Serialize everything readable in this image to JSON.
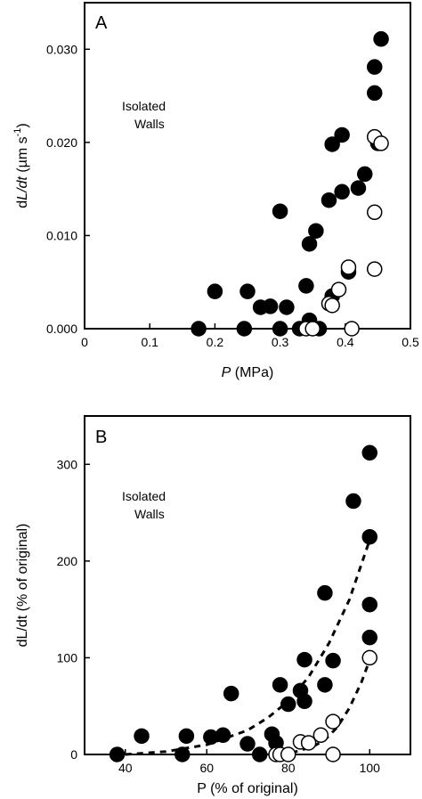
{
  "chart_data": [
    {
      "type": "scatter",
      "panel": "A",
      "annotation": [
        "Isolated",
        "Walls"
      ],
      "xlabel_italic": "P",
      "xlabel_rest": " (MPa)",
      "ylabel_pre": "d",
      "ylabel_italic": "L/dt",
      "ylabel_rest": " (µm s",
      "ylabel_sup": "-1",
      "ylabel_close": ")",
      "xlim": [
        0,
        0.5
      ],
      "ylim": [
        0,
        0.035
      ],
      "xticks": [
        0,
        0.1,
        0.2,
        0.3,
        0.4,
        0.5
      ],
      "xtick_labels": [
        "0",
        "0.1",
        "0.2",
        "0.3",
        "0.4",
        "0.5"
      ],
      "yticks": [
        0,
        0.01,
        0.02,
        0.03
      ],
      "ytick_labels": [
        "0.000",
        "0.010",
        "0.020",
        "0.030"
      ],
      "grid": false,
      "series": [
        {
          "style": "filled",
          "points": [
            [
              0.175,
              0.0
            ],
            [
              0.2,
              0.004
            ],
            [
              0.245,
              0.0
            ],
            [
              0.25,
              0.004
            ],
            [
              0.27,
              0.0023
            ],
            [
              0.285,
              0.0024
            ],
            [
              0.3,
              0.0
            ],
            [
              0.3,
              0.0126
            ],
            [
              0.31,
              0.0023
            ],
            [
              0.33,
              0.0
            ],
            [
              0.34,
              0.0046
            ],
            [
              0.345,
              0.0009
            ],
            [
              0.345,
              0.0091
            ],
            [
              0.355,
              0.0105
            ],
            [
              0.36,
              0.0
            ],
            [
              0.375,
              0.0138
            ],
            [
              0.38,
              0.0035
            ],
            [
              0.38,
              0.0198
            ],
            [
              0.395,
              0.0208
            ],
            [
              0.395,
              0.0147
            ],
            [
              0.405,
              0.0061
            ],
            [
              0.42,
              0.0151
            ],
            [
              0.43,
              0.0166
            ],
            [
              0.445,
              0.0253
            ],
            [
              0.445,
              0.0281
            ],
            [
              0.45,
              0.0199
            ],
            [
              0.455,
              0.0311
            ]
          ]
        },
        {
          "style": "open",
          "points": [
            [
              0.34,
              0.0
            ],
            [
              0.35,
              0.0
            ],
            [
              0.375,
              0.0027
            ],
            [
              0.38,
              0.0025
            ],
            [
              0.39,
              0.0042
            ],
            [
              0.405,
              0.0066
            ],
            [
              0.41,
              0.0
            ],
            [
              0.445,
              0.0064
            ],
            [
              0.445,
              0.0125
            ],
            [
              0.445,
              0.0206
            ],
            [
              0.455,
              0.0199
            ]
          ]
        }
      ]
    },
    {
      "type": "scatter",
      "panel": "B",
      "annotation": [
        "Isolated",
        "Walls"
      ],
      "xlabel": "P (% of original)",
      "ylabel": "dL/dt (% of original)",
      "xlim": [
        30,
        110
      ],
      "ylim": [
        0,
        350
      ],
      "xticks": [
        40,
        60,
        80,
        100
      ],
      "xtick_labels": [
        "40",
        "60",
        "80",
        "100"
      ],
      "yticks": [
        0,
        100,
        200,
        300
      ],
      "ytick_labels": [
        "0",
        "100",
        "200",
        "300"
      ],
      "grid": false,
      "series": [
        {
          "style": "filled",
          "points": [
            [
              38,
              0
            ],
            [
              44,
              19
            ],
            [
              54,
              0
            ],
            [
              55,
              19
            ],
            [
              61,
              18
            ],
            [
              64,
              20
            ],
            [
              66,
              63
            ],
            [
              70,
              11
            ],
            [
              73,
              0
            ],
            [
              76,
              21
            ],
            [
              77,
              12
            ],
            [
              78,
              72
            ],
            [
              80,
              52
            ],
            [
              83,
              66
            ],
            [
              84,
              98
            ],
            [
              84,
              55
            ],
            [
              89,
              167
            ],
            [
              89,
              72
            ],
            [
              91,
              97
            ],
            [
              96,
              262
            ],
            [
              100,
              312
            ],
            [
              100,
              225
            ],
            [
              100,
              155
            ],
            [
              100,
              121
            ]
          ]
        },
        {
          "style": "open",
          "points": [
            [
              77,
              0
            ],
            [
              78,
              0
            ],
            [
              80,
              0
            ],
            [
              83,
              13
            ],
            [
              85,
              12
            ],
            [
              88,
              20
            ],
            [
              91,
              34
            ],
            [
              91,
              0
            ],
            [
              100,
              100
            ]
          ]
        }
      ],
      "fit_curves": [
        {
          "style": "dashed",
          "points": [
            [
              40,
              0
            ],
            [
              50,
              3
            ],
            [
              60,
              10
            ],
            [
              70,
              25
            ],
            [
              75,
              38
            ],
            [
              80,
              55
            ],
            [
              85,
              80
            ],
            [
              90,
              115
            ],
            [
              95,
              160
            ],
            [
              100,
              222
            ]
          ]
        },
        {
          "style": "dashed",
          "points": [
            [
              78,
              0
            ],
            [
              82,
              3
            ],
            [
              86,
              8
            ],
            [
              89,
              15
            ],
            [
              92,
              28
            ],
            [
              95,
              48
            ],
            [
              98,
              75
            ],
            [
              100,
              98
            ]
          ]
        }
      ]
    }
  ]
}
